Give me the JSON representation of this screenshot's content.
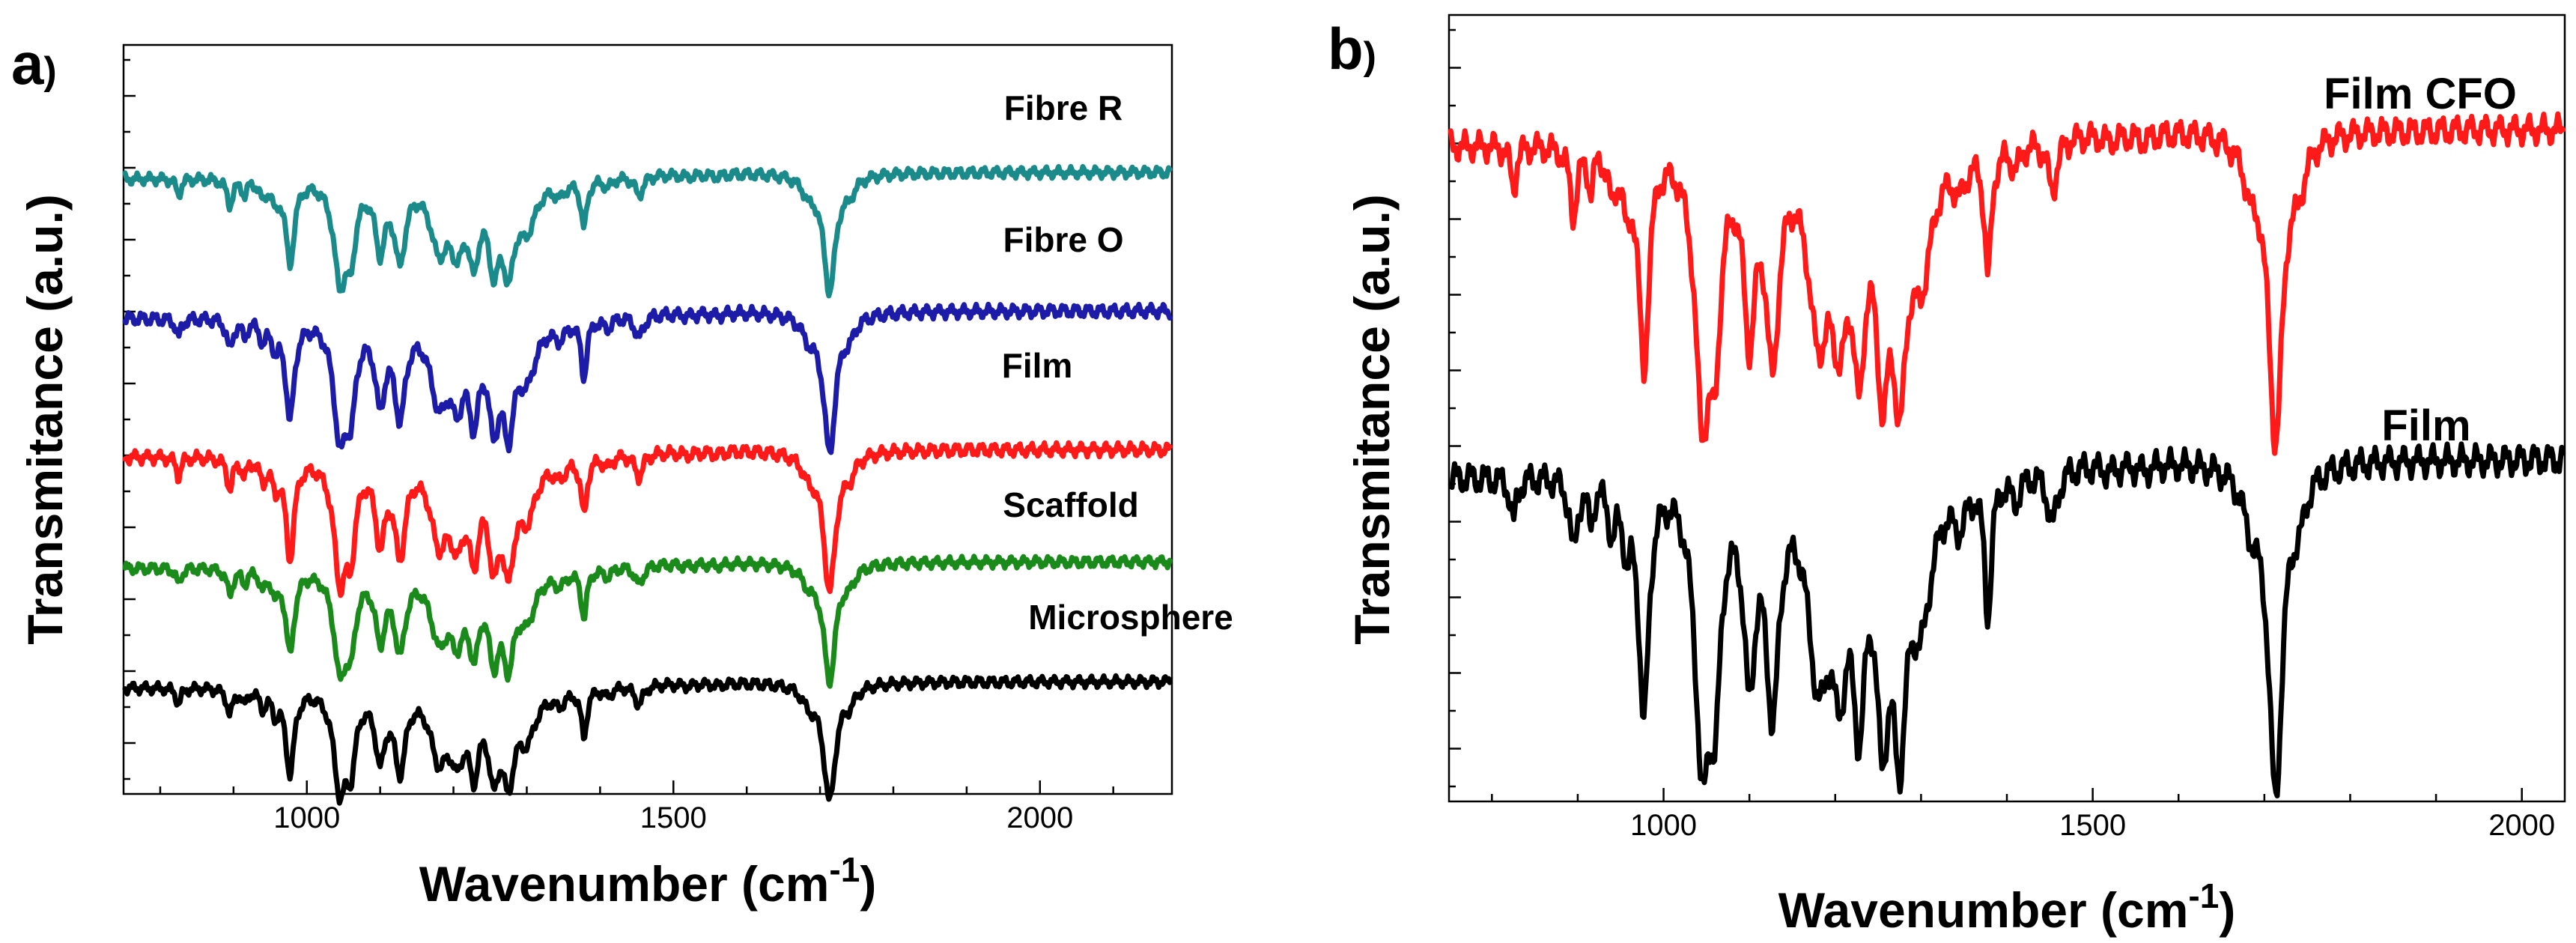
{
  "chart_data": [
    {
      "type": "line",
      "panel_label": "a",
      "panel_paren": ")",
      "xlabel": "Wavenumber (cm",
      "xlabel_sup": "-1",
      "xlabel_close": ")",
      "ylabel": "Transmitance (a.u.)",
      "xlim": [
        750,
        2180
      ],
      "ylim": [
        0,
        1
      ],
      "x_ticks": [
        1000,
        1500,
        2000
      ],
      "x_tick_labels": [
        "1000",
        "1500",
        "2000"
      ],
      "y_tick_labels_shown": false,
      "grid": false,
      "legend": "inline labels above each trace",
      "series": [
        {
          "name": "Fibre R",
          "color": "#1a8a8a",
          "offset": 0.83,
          "scale": 0.16
        },
        {
          "name": "Fibre O",
          "color": "#1c1ca8",
          "offset": 0.645,
          "scale": 0.19
        },
        {
          "name": "Film",
          "color": "#ff1a1a",
          "offset": 0.46,
          "scale": 0.19
        },
        {
          "name": "Scaffold",
          "color": "#1a8a1a",
          "offset": 0.31,
          "scale": 0.16
        },
        {
          "name": "Microsphere",
          "color": "#000000",
          "offset": 0.15,
          "scale": 0.16
        }
      ]
    },
    {
      "type": "line",
      "panel_label": "b",
      "panel_paren": ")",
      "xlabel": "Wavenumber (cm",
      "xlabel_sup": "-1",
      "xlabel_close": ")",
      "ylabel": "Transmitance (a.u.)",
      "xlim": [
        750,
        2050
      ],
      "ylim": [
        0,
        1
      ],
      "x_ticks": [
        1000,
        1500,
        2000
      ],
      "x_tick_labels": [
        "1000",
        "1500",
        "2000"
      ],
      "y_tick_labels_shown": false,
      "grid": false,
      "legend": "inline labels above each trace",
      "series": [
        {
          "name": "Film CFO",
          "color": "#ff1a1a",
          "offset": 0.855,
          "scale": 0.4
        },
        {
          "name": "Film",
          "color": "#000000",
          "offset": 0.435,
          "scale": 0.43
        }
      ]
    }
  ],
  "bands_cm-1": [
    {
      "x": 825,
      "d": 0.14,
      "w": 4
    },
    {
      "x": 895,
      "d": 0.22,
      "w": 5
    },
    {
      "x": 915,
      "d": 0.12,
      "w": 4
    },
    {
      "x": 940,
      "d": 0.15,
      "w": 5
    },
    {
      "x": 957,
      "d": 0.18,
      "w": 5
    },
    {
      "x": 977,
      "d": 0.72,
      "w": 7
    },
    {
      "x": 1045,
      "d": 0.82,
      "w": 10
    },
    {
      "x": 1060,
      "d": 0.55,
      "w": 8
    },
    {
      "x": 1100,
      "d": 0.56,
      "w": 8
    },
    {
      "x": 1127,
      "d": 0.66,
      "w": 9
    },
    {
      "x": 1180,
      "d": 0.55,
      "w": 14
    },
    {
      "x": 1205,
      "d": 0.5,
      "w": 12
    },
    {
      "x": 1228,
      "d": 0.6,
      "w": 8
    },
    {
      "x": 1255,
      "d": 0.66,
      "w": 9
    },
    {
      "x": 1275,
      "d": 0.68,
      "w": 9
    },
    {
      "x": 1300,
      "d": 0.4,
      "w": 16
    },
    {
      "x": 1345,
      "d": 0.12,
      "w": 10
    },
    {
      "x": 1378,
      "d": 0.42,
      "w": 5
    },
    {
      "x": 1410,
      "d": 0.08,
      "w": 8
    },
    {
      "x": 1453,
      "d": 0.17,
      "w": 7
    },
    {
      "x": 1520,
      "d": 0.02,
      "w": 12
    },
    {
      "x": 1560,
      "d": 0.02,
      "w": 10
    },
    {
      "x": 1685,
      "d": 0.14,
      "w": 12
    },
    {
      "x": 1713,
      "d": 1.0,
      "w": 10
    },
    {
      "x": 1740,
      "d": 0.12,
      "w": 10
    }
  ]
}
